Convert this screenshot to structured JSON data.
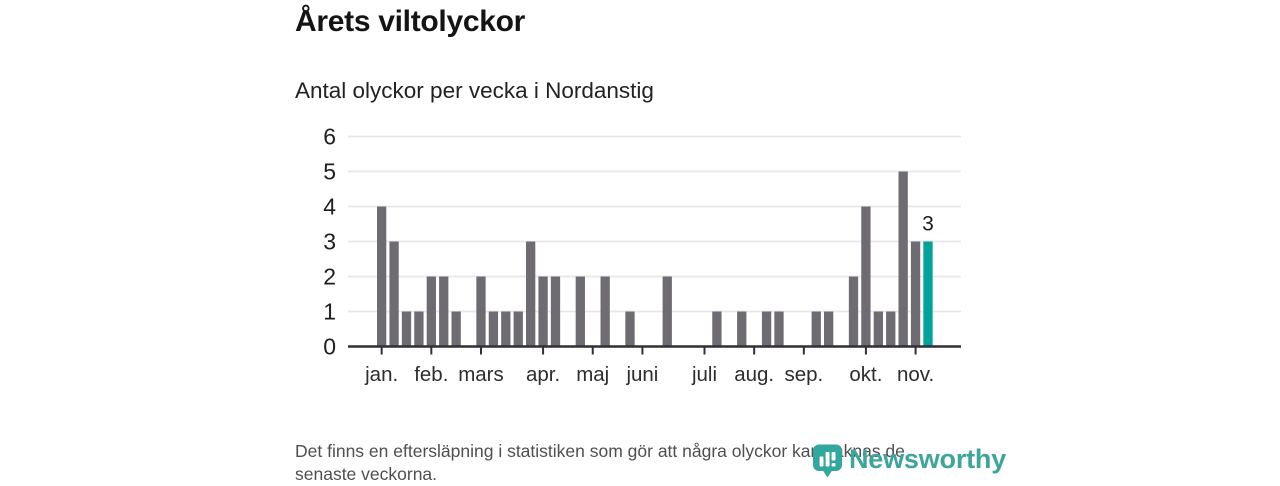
{
  "header": {
    "title": "Årets viltolyckor",
    "subtitle": "Antal olyckor per vecka i Nordanstig"
  },
  "chart_data": {
    "type": "bar",
    "title": "Årets viltolyckor",
    "subtitle": "Antal olyckor per vecka i Nordanstig",
    "x_type": "weeks (jan–nov)",
    "values": [
      4,
      3,
      1,
      1,
      2,
      2,
      1,
      0,
      2,
      1,
      1,
      1,
      3,
      2,
      2,
      0,
      2,
      0,
      2,
      0,
      1,
      0,
      0,
      2,
      0,
      0,
      0,
      1,
      0,
      1,
      0,
      1,
      1,
      0,
      0,
      1,
      1,
      0,
      2,
      4,
      1,
      1,
      5,
      3,
      3
    ],
    "highlight_index": 44,
    "highlight_label": "3",
    "y_ticks": [
      0,
      1,
      2,
      3,
      4,
      5,
      6
    ],
    "ylim": [
      0,
      6
    ],
    "grid": true,
    "legend": false,
    "month_ticks": [
      {
        "label": "jan.",
        "week_index": 0
      },
      {
        "label": "feb.",
        "week_index": 4
      },
      {
        "label": "mars",
        "week_index": 8
      },
      {
        "label": "apr.",
        "week_index": 13
      },
      {
        "label": "maj",
        "week_index": 17
      },
      {
        "label": "juni",
        "week_index": 21
      },
      {
        "label": "juli",
        "week_index": 26
      },
      {
        "label": "aug.",
        "week_index": 30
      },
      {
        "label": "sep.",
        "week_index": 34
      },
      {
        "label": "okt.",
        "week_index": 39
      },
      {
        "label": "nov.",
        "week_index": 43
      }
    ],
    "colors": {
      "bar": "#6e6c72",
      "highlight": "#00a29a",
      "grid": "#e7e7e9",
      "axis": "#303034",
      "y_label": "#1f1f1f",
      "month_label": "#2d2d2d",
      "annotation": "#1a1a1a"
    }
  },
  "footer": {
    "note_line1": "Det finns en eftersläpning i statistiken som gör att några olyckor kan saknas de",
    "note_line2": "senaste veckorna.",
    "brand_name": "Newsworthy",
    "brand_color": "#3da59c"
  }
}
